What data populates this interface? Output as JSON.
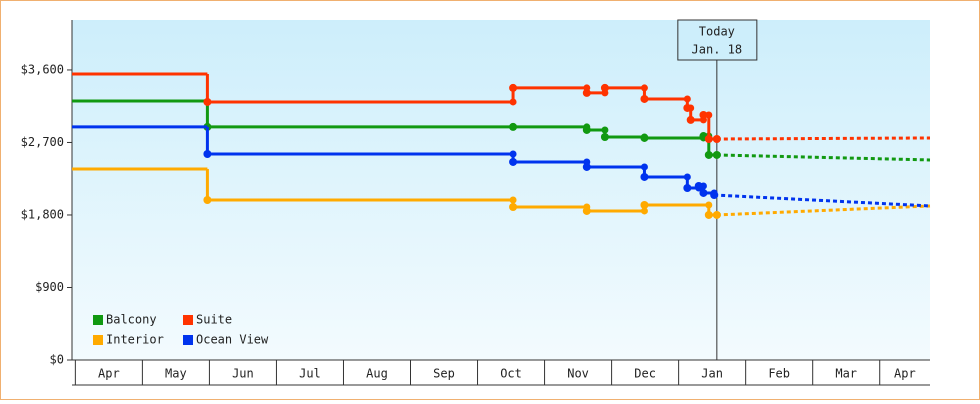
{
  "chart_data": {
    "type": "step-line",
    "xlim": [
      -0.05,
      12.75
    ],
    "xticks": [
      {
        "value": 0,
        "label": "Apr"
      },
      {
        "value": 1,
        "label": "May"
      },
      {
        "value": 2,
        "label": "Jun"
      },
      {
        "value": 3,
        "label": "Jul"
      },
      {
        "value": 4,
        "label": "Aug"
      },
      {
        "value": 5,
        "label": "Sep"
      },
      {
        "value": 6,
        "label": "Oct"
      },
      {
        "value": 7,
        "label": "Nov"
      },
      {
        "value": 8,
        "label": "Dec"
      },
      {
        "value": 9,
        "label": "Jan"
      },
      {
        "value": 10,
        "label": "Feb"
      },
      {
        "value": 11,
        "label": "Mar"
      },
      {
        "value": 12,
        "label": "Apr"
      }
    ],
    "ylim": [
      0,
      4220
    ],
    "yticks": [
      {
        "value": 0,
        "label": "$0"
      },
      {
        "value": 900,
        "label": "$900"
      },
      {
        "value": 1800,
        "label": "$1,800"
      },
      {
        "value": 2700,
        "label": "$2,700"
      },
      {
        "value": 3600,
        "label": "$3,600"
      }
    ],
    "today": {
      "x": 9.57,
      "label": "Today",
      "date": "Jan. 18"
    },
    "series": [
      {
        "name": "Balcony",
        "color": "#119911",
        "x": [
          -0.05,
          1.97,
          6.53,
          7.63,
          7.9,
          8.49,
          9.37,
          9.45,
          9.57
        ],
        "values": [
          3215,
          2893,
          2893,
          2855,
          2768,
          2756,
          2780,
          2545,
          2545
        ],
        "forecast_x": [
          9.57,
          12.75
        ],
        "forecast": [
          2545,
          2483
        ]
      },
      {
        "name": "Suite",
        "color": "#ff3300",
        "x": [
          -0.05,
          1.97,
          6.53,
          7.63,
          7.9,
          8.49,
          9.13,
          9.18,
          9.37,
          9.45,
          9.57
        ],
        "values": [
          3550,
          3203,
          3377,
          3315,
          3377,
          3240,
          3128,
          2980,
          3041,
          2743,
          2743
        ],
        "forecast_x": [
          9.57,
          12.75
        ],
        "forecast": [
          2743,
          2756
        ]
      },
      {
        "name": "Interior",
        "color": "#ffaa00",
        "x": [
          -0.05,
          1.97,
          6.53,
          7.63,
          8.49,
          9.45,
          9.57
        ],
        "values": [
          2371,
          1986,
          1899,
          1850,
          1924,
          1800,
          1800
        ],
        "forecast_x": [
          9.57,
          12.75
        ],
        "forecast": [
          1800,
          1912
        ]
      },
      {
        "name": "Ocean View",
        "color": "#0033ee",
        "x": [
          -0.05,
          1.97,
          6.53,
          7.63,
          8.49,
          9.13,
          9.3,
          9.37,
          9.53
        ],
        "values": [
          2893,
          2557,
          2458,
          2396,
          2272,
          2135,
          2160,
          2073,
          2048
        ],
        "forecast_x": [
          9.53,
          12.75
        ],
        "forecast": [
          2048,
          1912
        ]
      }
    ]
  }
}
